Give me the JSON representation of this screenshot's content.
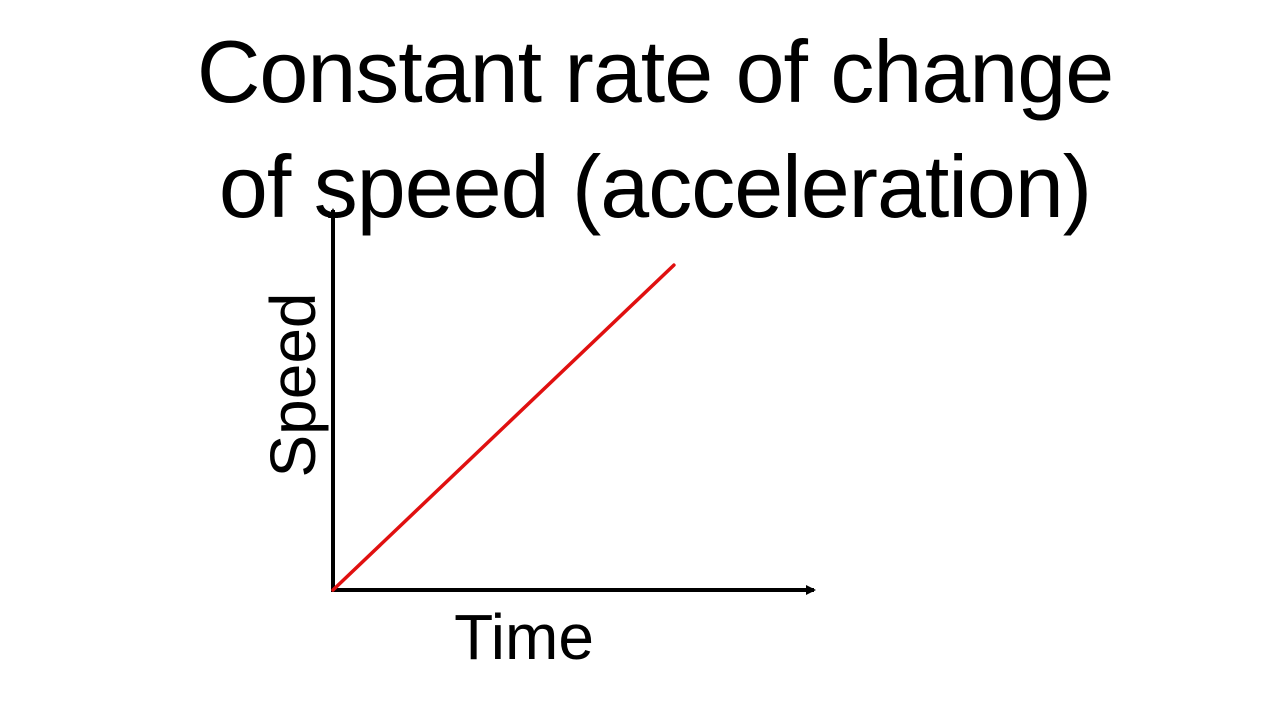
{
  "slide": {
    "title_line1": "Constant rate of change",
    "title_line2": "of speed (acceleration)"
  },
  "colors": {
    "line": "#e01010",
    "axes": "#000000",
    "background": "#ffffff"
  },
  "chart_data": {
    "type": "line",
    "title": "Constant rate of change of speed (acceleration)",
    "xlabel": "Time",
    "ylabel": "Speed",
    "x_ticks": [],
    "y_ticks": [],
    "grid": false,
    "legend": "none",
    "series": [
      {
        "points": [
          {
            "x": 0.0,
            "y": 0.0
          },
          {
            "x": 0.73,
            "y": 0.89
          }
        ]
      }
    ],
    "xlim": [
      0,
      1
    ],
    "ylim": [
      0,
      1
    ]
  }
}
